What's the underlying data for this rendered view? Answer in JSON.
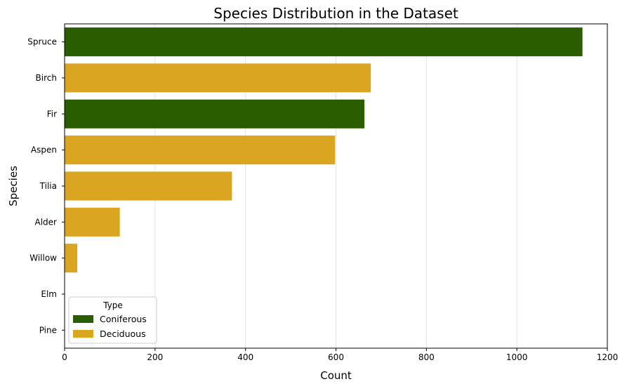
{
  "chart_data": {
    "type": "bar",
    "orientation": "horizontal",
    "title": "Species Distribution in the Dataset",
    "xlabel": "Count",
    "ylabel": "Species",
    "xlim": [
      0,
      1200
    ],
    "xticks": [
      0,
      200,
      400,
      600,
      800,
      1000,
      1200
    ],
    "x_grid": true,
    "categories": [
      "Spruce",
      "Birch",
      "Fir",
      "Aspen",
      "Tilia",
      "Alder",
      "Willow",
      "Elm",
      "Pine"
    ],
    "values": [
      1145,
      677,
      663,
      598,
      370,
      122,
      28,
      0,
      0
    ],
    "types": [
      "Coniferous",
      "Deciduous",
      "Coniferous",
      "Deciduous",
      "Deciduous",
      "Deciduous",
      "Deciduous",
      "Deciduous",
      "Coniferous"
    ],
    "legend": {
      "title": "Type",
      "placement": "lower-left",
      "entries": [
        {
          "label": "Coniferous",
          "color": "#2a5d00"
        },
        {
          "label": "Deciduous",
          "color": "#daa520"
        }
      ]
    }
  }
}
